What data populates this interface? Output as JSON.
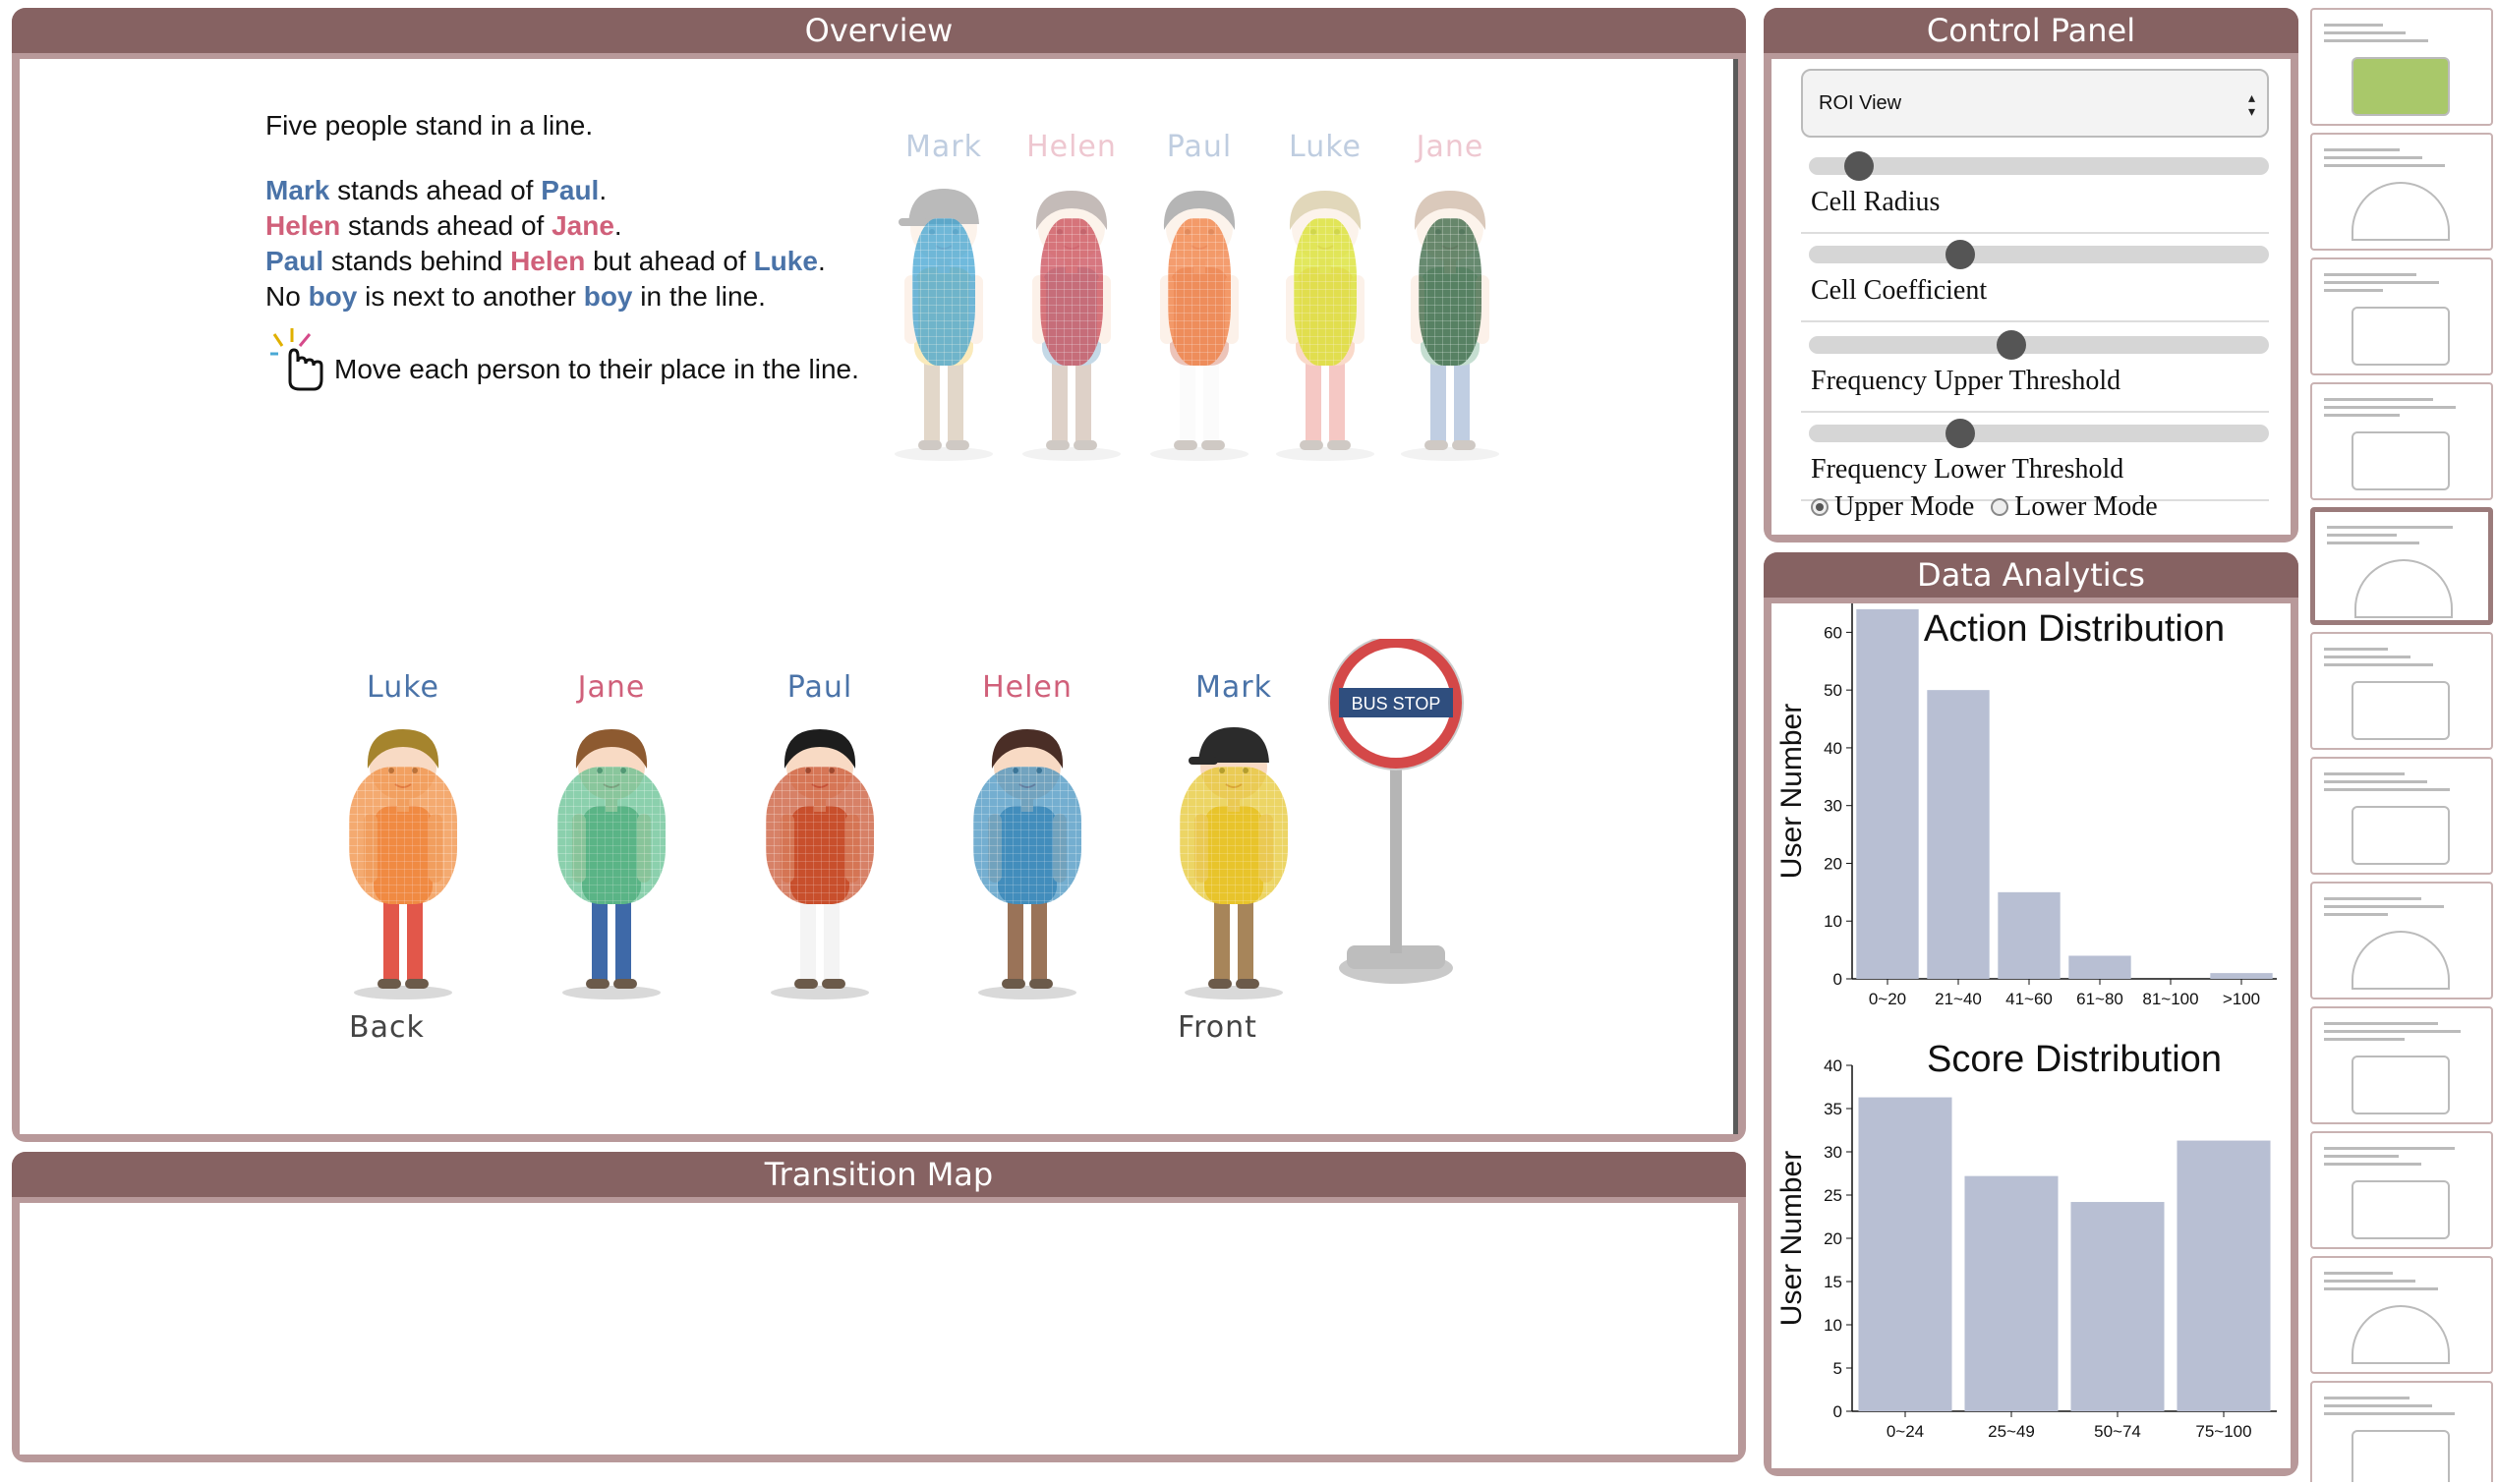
{
  "overview": {
    "title": "Overview",
    "question": {
      "intro": "Five people stand in a line.",
      "l1": {
        "a": "Mark",
        "b": " stands ahead of ",
        "c": "Paul",
        "d": "."
      },
      "l2": {
        "a": "Helen",
        "b": " stands ahead of ",
        "c": "Jane",
        "d": "."
      },
      "l3": {
        "a": "Paul",
        "b": " stands behind ",
        "c": "Helen",
        "d": " but ahead of ",
        "e": "Luke",
        "f": "."
      },
      "l4": {
        "a": "No ",
        "b": "boy",
        "c": " is next to another ",
        "d": "boy",
        "e": " in the line."
      },
      "instruction": "Move each person to their place in the line."
    },
    "top_people": [
      "Mark",
      "Helen",
      "Paul",
      "Luke",
      "Jane"
    ],
    "line_people": [
      "Luke",
      "Jane",
      "Paul",
      "Helen",
      "Mark"
    ],
    "back_label": "Back",
    "front_label": "Front",
    "bus_stop": "BUS STOP"
  },
  "transition": {
    "title": "Transition Map"
  },
  "control": {
    "title": "Control Panel",
    "view_select": "ROI View",
    "sliders": [
      {
        "label": "Cell Radius",
        "value": 0.11
      },
      {
        "label": "Cell Coefficient",
        "value": 0.33
      },
      {
        "label": "Frequency Upper Threshold",
        "value": 0.44
      },
      {
        "label": "Frequency Lower Threshold",
        "value": 0.33
      }
    ],
    "modes": {
      "upper": "Upper Mode",
      "lower": "Lower Mode",
      "selected": "upper"
    }
  },
  "analytics": {
    "title": "Data Analytics",
    "chart_data": [
      {
        "type": "bar",
        "title": "Action Distribution",
        "ylabel": "User Number",
        "xlabel": "",
        "categories": [
          "0~20",
          "21~40",
          "41~60",
          "61~80",
          "81~100",
          ">100"
        ],
        "values": [
          64,
          50,
          15,
          4,
          0,
          1
        ],
        "ylim": [
          0,
          65
        ],
        "yticks": [
          0,
          10,
          20,
          30,
          40,
          50,
          60
        ],
        "color": "#b8bfd3"
      },
      {
        "type": "bar",
        "title": "Score Distribution",
        "ylabel": "User Number",
        "xlabel": "",
        "categories": [
          "0~24",
          "25~49",
          "50~74",
          "75~100"
        ],
        "values": [
          36.3,
          27.2,
          24.2,
          31.3
        ],
        "ylim": [
          0,
          40
        ],
        "yticks": [
          0,
          5,
          10,
          15,
          20,
          25,
          30,
          35,
          40
        ],
        "color": "#b8bfd3"
      }
    ]
  },
  "colors": {
    "header": "#866262",
    "frame": "#b8999a",
    "boy_name": "#4a73a8",
    "girl_name": "#d0607a"
  }
}
